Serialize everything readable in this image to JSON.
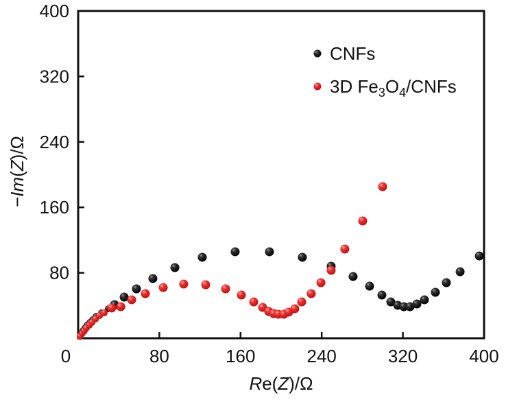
{
  "chart_data": {
    "type": "scatter",
    "title": "",
    "xlabel": "Re(Z)/Ω",
    "xlabel_parts": [
      {
        "text": "R",
        "italic": true
      },
      {
        "text": "e(",
        "italic": false
      },
      {
        "text": "Z",
        "italic": true
      },
      {
        "text": ")/Ω",
        "italic": false
      }
    ],
    "ylabel": "−Im(Z)/Ω",
    "ylabel_parts": [
      {
        "text": "−",
        "italic": false
      },
      {
        "text": "Im",
        "italic": true
      },
      {
        "text": "(",
        "italic": false
      },
      {
        "text": "Z",
        "italic": true
      },
      {
        "text": ")/Ω",
        "italic": false
      }
    ],
    "xlim": [
      0,
      400
    ],
    "ylim": [
      0,
      400
    ],
    "xticks": [
      0,
      80,
      160,
      240,
      320,
      400
    ],
    "yticks": [
      80,
      160,
      240,
      320,
      400
    ],
    "origin_label": "0",
    "grid": false,
    "legend_position": "top-right",
    "series": [
      {
        "name": "CNFs",
        "legend_parts": [
          {
            "text": "CNFs",
            "sub": false
          }
        ],
        "color": "#111111",
        "x": [
          2.0,
          3.4,
          4.7,
          6.8,
          8.8,
          11.5,
          14.2,
          17.6,
          23.0,
          29.7,
          35.8,
          45.3,
          57.4,
          73.6,
          95.3,
          122.3,
          154.7,
          188.5,
          220.9,
          249.3,
          270.9,
          287.2,
          299.3,
          308.1,
          314.9,
          320.9,
          327.0,
          333.8,
          341.2,
          352.0,
          362.8,
          376.4,
          395.3
        ],
        "y": [
          2.5,
          5.9,
          9.2,
          12.6,
          16.0,
          19.3,
          22.6,
          26.8,
          31.0,
          36.1,
          41.1,
          50.3,
          60.4,
          73.0,
          86.4,
          99.0,
          105.7,
          105.7,
          99.0,
          88.1,
          75.5,
          63.7,
          52.8,
          44.4,
          40.3,
          38.6,
          38.6,
          41.9,
          47.0,
          56.2,
          67.9,
          81.3,
          100.6
        ]
      },
      {
        "name": "3D Fe3O4/CNFs",
        "legend_parts": [
          {
            "text": "3D Fe",
            "sub": false
          },
          {
            "text": "3",
            "sub": true
          },
          {
            "text": "O",
            "sub": false
          },
          {
            "text": "4",
            "sub": true
          },
          {
            "text": "/CNFs",
            "sub": false
          }
        ],
        "color": "#e8242a",
        "x": [
          2.0,
          4.0,
          6.0,
          8.0,
          11.0,
          13.5,
          17.0,
          21.0,
          25.7,
          33.0,
          42.0,
          52.7,
          66.2,
          83.8,
          104.0,
          125.7,
          145.3,
          160.8,
          173.0,
          181.8,
          187.8,
          192.6,
          197.3,
          202.7,
          207.4,
          213.5,
          220.3,
          229.7,
          239.2,
          249.3,
          262.8,
          280.4,
          300.0
        ],
        "y": [
          2.5,
          6.0,
          9.0,
          12.5,
          16.0,
          19.3,
          23.5,
          27.7,
          31.0,
          37.0,
          38.6,
          47.0,
          54.5,
          62.0,
          66.2,
          65.4,
          60.4,
          52.8,
          44.4,
          37.7,
          32.7,
          30.2,
          29.4,
          29.4,
          31.9,
          36.1,
          44.4,
          54.5,
          67.9,
          83.0,
          109.0,
          143.4,
          185.3
        ]
      }
    ]
  }
}
